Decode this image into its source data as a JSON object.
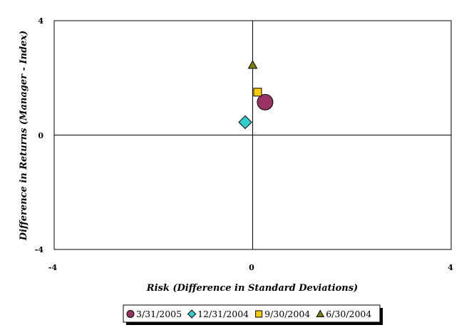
{
  "chart_data": {
    "type": "scatter",
    "title": "",
    "xlabel": "Risk (Difference in Standard Deviations)",
    "ylabel": "Difference in Returns (Manager - Index)",
    "xlim": [
      -4,
      4
    ],
    "ylim": [
      -4,
      4
    ],
    "xticks": [
      "-4",
      "0",
      "4"
    ],
    "yticks": [
      "-4",
      "0",
      "4"
    ],
    "grid": false,
    "zero_lines": true,
    "legend_position": "bottom",
    "series": [
      {
        "name": "3/31/2005",
        "marker": "circle",
        "color": "#993366",
        "x": 0.25,
        "y": 1.15
      },
      {
        "name": "12/31/2004",
        "marker": "diamond",
        "color": "#33CCCC",
        "x": -0.15,
        "y": 0.45
      },
      {
        "name": "9/30/2004",
        "marker": "square",
        "color": "#FFCC00",
        "x": 0.1,
        "y": 1.5
      },
      {
        "name": "6/30/2004",
        "marker": "triangle",
        "color": "#808000",
        "x": 0.0,
        "y": 2.45
      }
    ]
  }
}
